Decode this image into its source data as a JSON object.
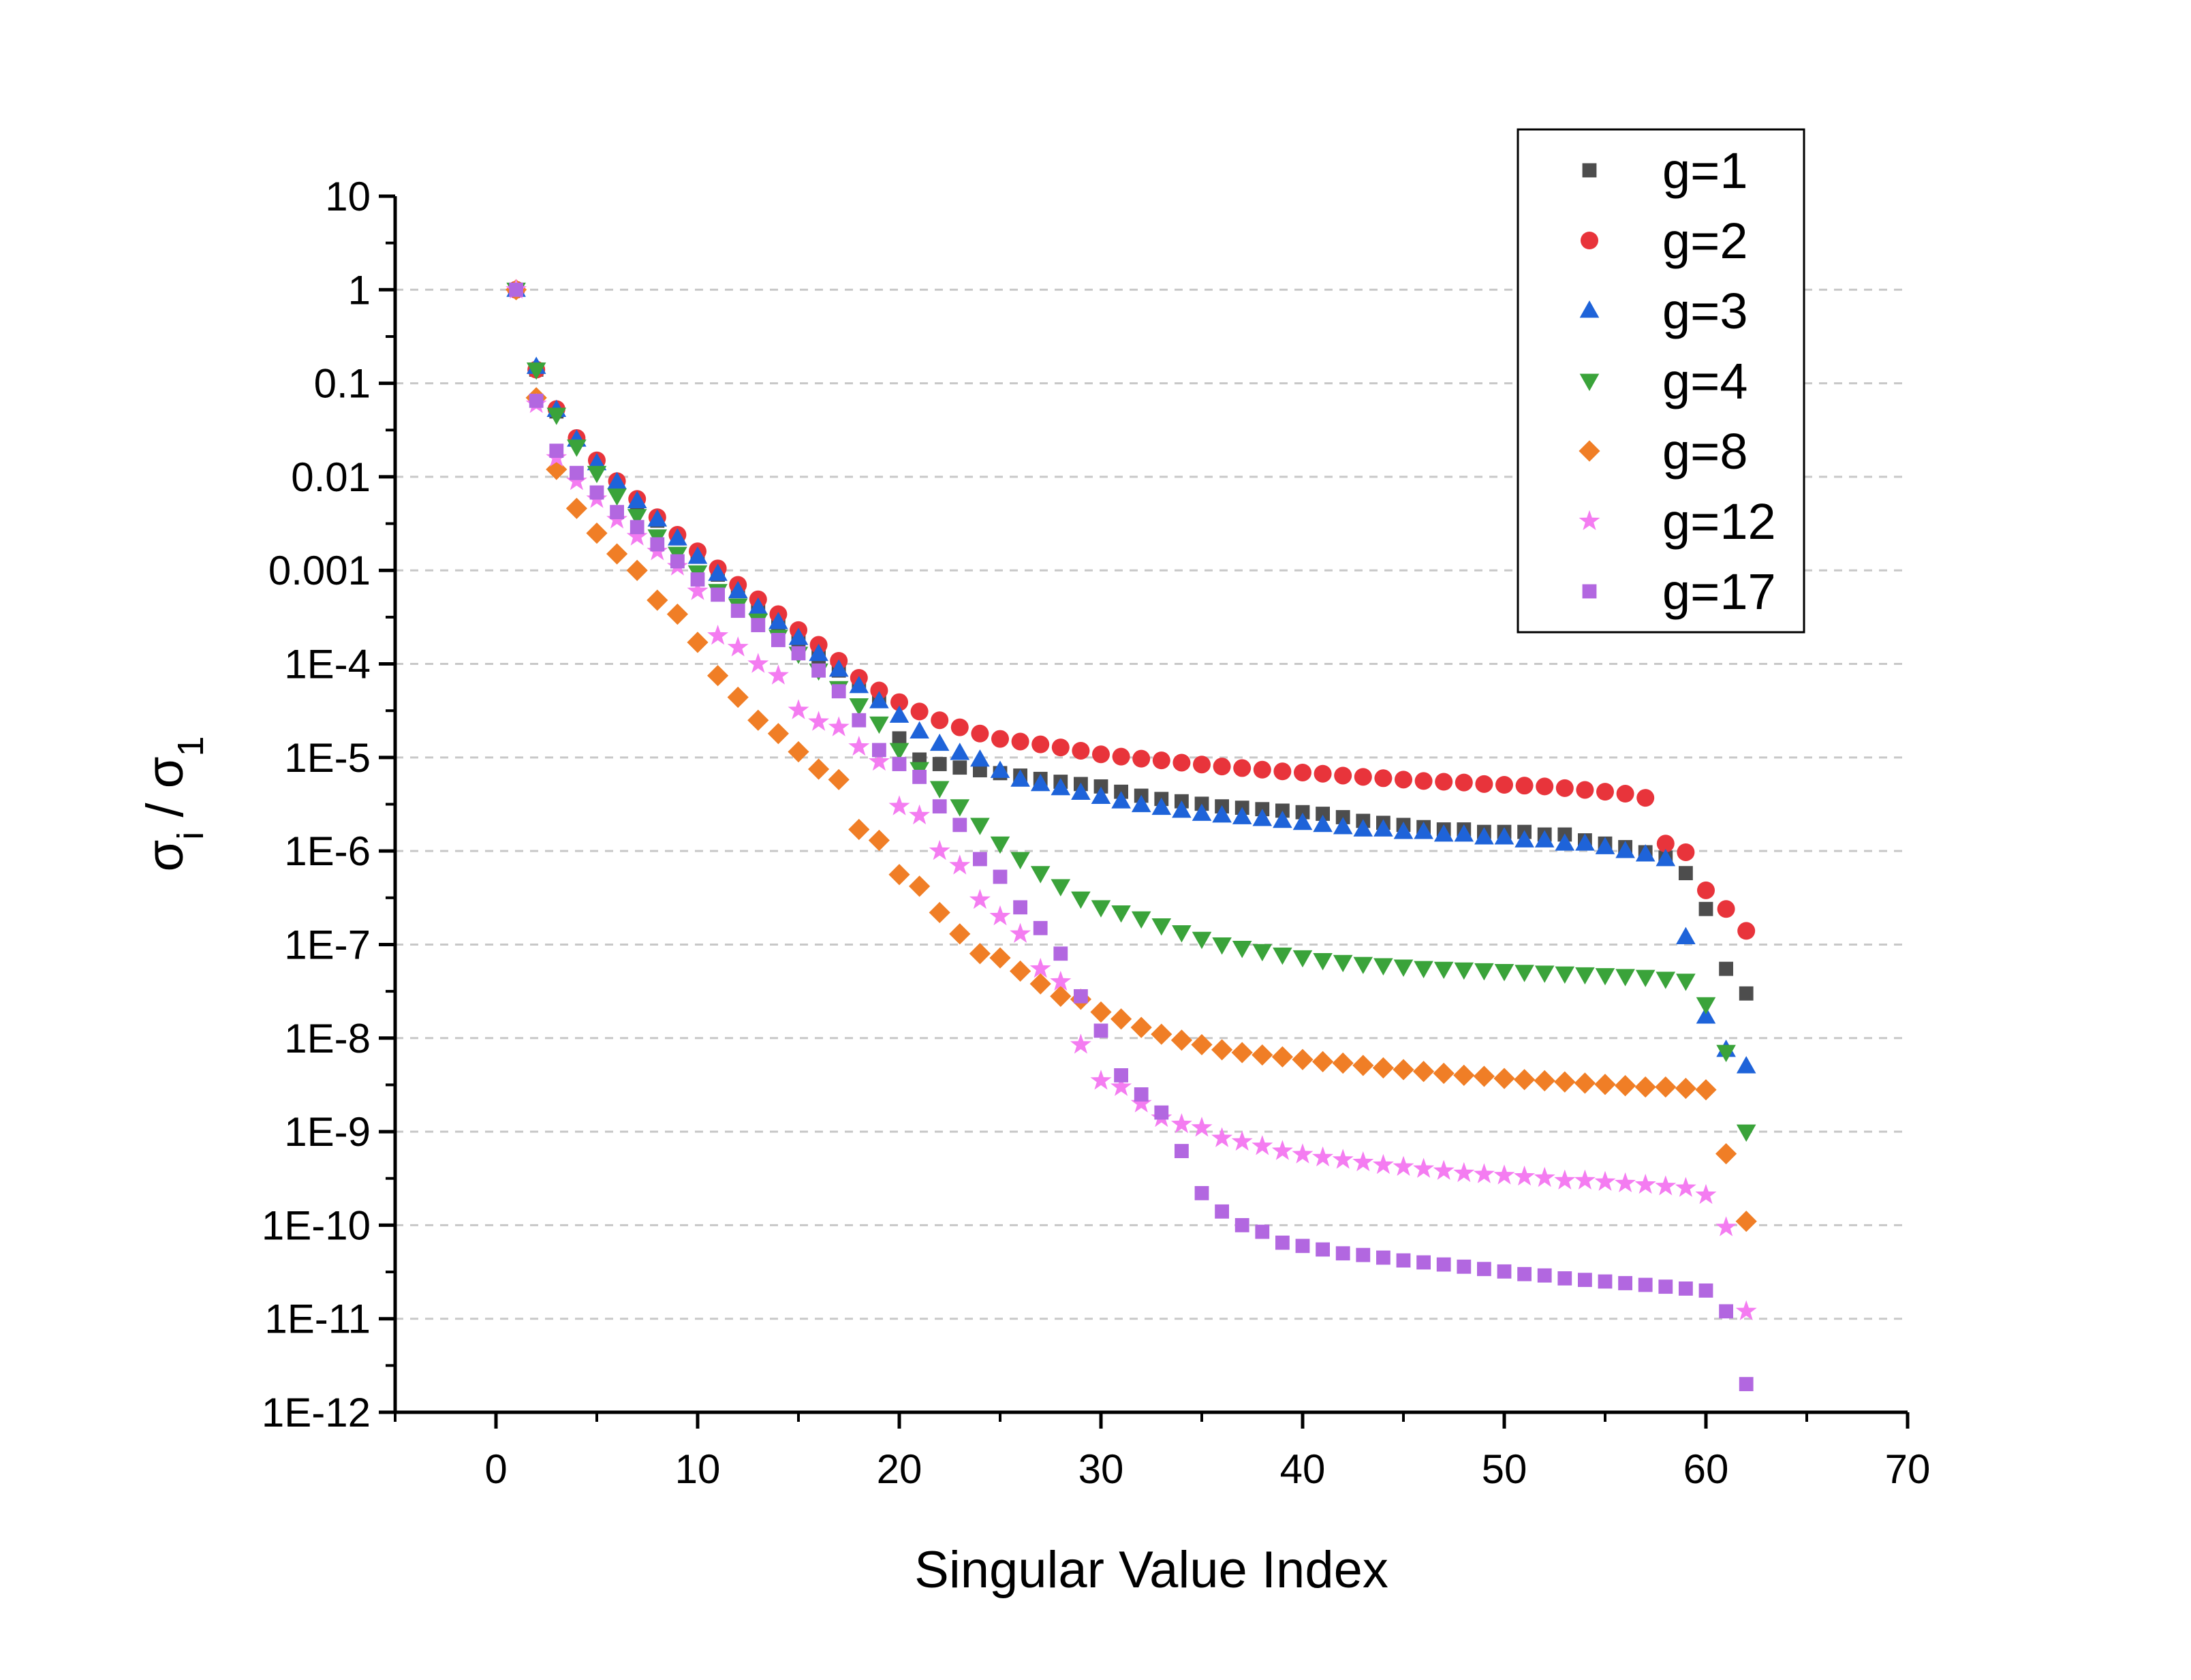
{
  "chart_data": {
    "type": "scatter",
    "title": "",
    "xlabel": "Singular Value Index",
    "ylabel": {
      "base": "σ",
      "sub_num": "i",
      "sep": " / ",
      "base2": "σ",
      "sub_den": "1"
    },
    "xlim": [
      -5,
      70
    ],
    "xticks": [
      0,
      10,
      20,
      30,
      40,
      50,
      60,
      70
    ],
    "xtick_labels": [
      "0",
      "10",
      "20",
      "30",
      "40",
      "50",
      "60",
      "70"
    ],
    "yscale": "log",
    "ylim": [
      1e-12,
      10
    ],
    "ytick_exponents": [
      1,
      0,
      -1,
      -2,
      -3,
      -4,
      -5,
      -6,
      -7,
      -8,
      -9,
      -10,
      -11,
      -12
    ],
    "ytick_labels": [
      "10",
      "1",
      "0.1",
      "0.01",
      "0.001",
      "1E-4",
      "1E-5",
      "1E-6",
      "1E-7",
      "1E-8",
      "1E-9",
      "1E-10",
      "1E-11",
      "1E-12"
    ],
    "grid": "horizontal dashed",
    "legend_position": "top-right",
    "series": [
      {
        "name": "g=1",
        "marker": "square",
        "color": "#4d4d4d",
        "x": [
          1,
          2,
          3,
          4,
          5,
          6,
          7,
          8,
          9,
          10,
          11,
          12,
          13,
          14,
          15,
          16,
          17,
          18,
          19,
          20,
          21,
          22,
          23,
          24,
          25,
          26,
          27,
          28,
          29,
          30,
          31,
          32,
          33,
          34,
          35,
          36,
          37,
          38,
          39,
          40,
          41,
          42,
          43,
          44,
          45,
          46,
          47,
          48,
          49,
          50,
          51,
          52,
          53,
          54,
          55,
          56,
          57,
          58,
          59,
          60,
          61,
          62
        ],
        "y": [
          1,
          0.14,
          0.05,
          0.025,
          0.014,
          0.0085,
          0.0052,
          0.0034,
          0.0022,
          0.0014,
          0.0009,
          0.0006,
          0.0004,
          0.00027,
          0.00018,
          0.00012,
          8.5e-05,
          6e-05,
          4.3e-05,
          1.6e-05,
          9.5e-06,
          8.5e-06,
          7.8e-06,
          7.3e-06,
          6.8e-06,
          6.4e-06,
          5.9e-06,
          5.5e-06,
          5.2e-06,
          4.9e-06,
          4.3e-06,
          3.9e-06,
          3.6e-06,
          3.4e-06,
          3.2e-06,
          3e-06,
          2.9e-06,
          2.8e-06,
          2.7e-06,
          2.6e-06,
          2.5e-06,
          2.3e-06,
          2.1e-06,
          2e-06,
          1.9e-06,
          1.8e-06,
          1.7e-06,
          1.7e-06,
          1.6e-06,
          1.6e-06,
          1.6e-06,
          1.5e-06,
          1.5e-06,
          1.3e-06,
          1.2e-06,
          1.1e-06,
          9.7e-07,
          8.5e-07,
          5.8e-07,
          2.4e-07,
          5.5e-08,
          3e-08
        ]
      },
      {
        "name": "g=2",
        "marker": "circle",
        "color": "#e8343b",
        "x": [
          1,
          2,
          3,
          4,
          5,
          6,
          7,
          8,
          9,
          10,
          11,
          12,
          13,
          14,
          15,
          16,
          17,
          18,
          19,
          20,
          21,
          22,
          23,
          24,
          25,
          26,
          27,
          28,
          29,
          30,
          31,
          32,
          33,
          34,
          35,
          36,
          37,
          38,
          39,
          40,
          41,
          42,
          43,
          44,
          45,
          46,
          47,
          48,
          49,
          50,
          51,
          52,
          53,
          54,
          55,
          56,
          57,
          58,
          59,
          60,
          61,
          62
        ],
        "y": [
          1,
          0.14,
          0.053,
          0.026,
          0.015,
          0.009,
          0.0058,
          0.0037,
          0.0024,
          0.0016,
          0.00105,
          0.0007,
          0.00049,
          0.00034,
          0.00023,
          0.00016,
          0.000108,
          7.1e-05,
          5.2e-05,
          3.9e-05,
          3.1e-05,
          2.5e-05,
          2.1e-05,
          1.8e-05,
          1.58e-05,
          1.48e-05,
          1.38e-05,
          1.28e-05,
          1.18e-05,
          1.08e-05,
          1.02e-05,
          9.7e-06,
          9.3e-06,
          8.8e-06,
          8.4e-06,
          8e-06,
          7.7e-06,
          7.4e-06,
          7.1e-06,
          6.9e-06,
          6.7e-06,
          6.4e-06,
          6.2e-06,
          6e-06,
          5.8e-06,
          5.6e-06,
          5.5e-06,
          5.4e-06,
          5.2e-06,
          5.1e-06,
          5e-06,
          4.9e-06,
          4.7e-06,
          4.5e-06,
          4.3e-06,
          4.1e-06,
          3.7e-06,
          1.2e-06,
          9.7e-07,
          3.8e-07,
          2.4e-07,
          1.4e-07
        ]
      },
      {
        "name": "g=3",
        "marker": "triangle-up",
        "color": "#1e63d9",
        "x": [
          1,
          2,
          3,
          4,
          5,
          6,
          7,
          8,
          9,
          10,
          11,
          12,
          13,
          14,
          15,
          16,
          17,
          18,
          19,
          20,
          21,
          22,
          23,
          24,
          25,
          26,
          27,
          28,
          29,
          30,
          31,
          32,
          33,
          34,
          35,
          36,
          37,
          38,
          39,
          40,
          41,
          42,
          43,
          44,
          45,
          46,
          47,
          48,
          49,
          50,
          51,
          52,
          53,
          54,
          55,
          56,
          57,
          58,
          59,
          60,
          61,
          62
        ],
        "y": [
          1,
          0.15,
          0.052,
          0.025,
          0.014,
          0.0088,
          0.0055,
          0.0035,
          0.0022,
          0.0014,
          0.00092,
          0.0006,
          0.0004,
          0.00028,
          0.00019,
          0.000128,
          8.7e-05,
          5.8e-05,
          4e-05,
          2.8e-05,
          1.9e-05,
          1.4e-05,
          1.12e-05,
          9.5e-06,
          7.2e-06,
          5.8e-06,
          5.2e-06,
          4.7e-06,
          4.2e-06,
          3.8e-06,
          3.4e-06,
          3.1e-06,
          2.9e-06,
          2.7e-06,
          2.5e-06,
          2.4e-06,
          2.3e-06,
          2.2e-06,
          2.1e-06,
          2e-06,
          1.9e-06,
          1.8e-06,
          1.7e-06,
          1.7e-06,
          1.6e-06,
          1.6e-06,
          1.5e-06,
          1.5e-06,
          1.4e-06,
          1.4e-06,
          1.3e-06,
          1.3e-06,
          1.2e-06,
          1.2e-06,
          1.1e-06,
          1e-06,
          9.2e-07,
          8.2e-07,
          1.2e-07,
          1.7e-08,
          7.5e-09,
          5e-09
        ]
      },
      {
        "name": "g=4",
        "marker": "triangle-down",
        "color": "#3aa33a",
        "x": [
          1,
          2,
          3,
          4,
          5,
          6,
          7,
          8,
          9,
          10,
          11,
          12,
          13,
          14,
          15,
          16,
          17,
          18,
          19,
          20,
          21,
          22,
          23,
          24,
          25,
          26,
          27,
          28,
          29,
          30,
          31,
          32,
          33,
          34,
          35,
          36,
          37,
          38,
          39,
          40,
          41,
          42,
          43,
          44,
          45,
          46,
          47,
          48,
          49,
          50,
          51,
          52,
          53,
          54,
          55,
          56,
          57,
          58,
          59,
          60,
          61,
          62
        ],
        "y": [
          1,
          0.14,
          0.046,
          0.021,
          0.011,
          0.0063,
          0.0038,
          0.0023,
          0.0015,
          0.00095,
          0.0006,
          0.00042,
          0.00029,
          0.000195,
          0.000128,
          8.5e-05,
          5.5e-05,
          3.6e-05,
          2.3e-05,
          1.2e-05,
          7.5e-06,
          4.7e-06,
          3e-06,
          1.9e-06,
          1.2e-06,
          8.2e-07,
          5.8e-07,
          4.2e-07,
          3.1e-07,
          2.5e-07,
          2.2e-07,
          1.9e-07,
          1.6e-07,
          1.35e-07,
          1.15e-07,
          1e-07,
          9.2e-08,
          8.5e-08,
          7.8e-08,
          7.3e-08,
          6.8e-08,
          6.5e-08,
          6.2e-08,
          6e-08,
          5.8e-08,
          5.6e-08,
          5.5e-08,
          5.4e-08,
          5.3e-08,
          5.2e-08,
          5.1e-08,
          5e-08,
          4.9e-08,
          4.8e-08,
          4.7e-08,
          4.6e-08,
          4.5e-08,
          4.3e-08,
          4.1e-08,
          2.3e-08,
          7.1e-09,
          1e-09
        ]
      },
      {
        "name": "g=8",
        "marker": "diamond",
        "color": "#f07e26",
        "x": [
          1,
          2,
          3,
          4,
          5,
          6,
          7,
          8,
          9,
          10,
          11,
          12,
          13,
          14,
          15,
          16,
          17,
          18,
          19,
          20,
          21,
          22,
          23,
          24,
          25,
          26,
          27,
          28,
          29,
          30,
          31,
          32,
          33,
          34,
          35,
          36,
          37,
          38,
          39,
          40,
          41,
          42,
          43,
          44,
          45,
          46,
          47,
          48,
          49,
          50,
          51,
          52,
          53,
          54,
          55,
          56,
          57,
          58,
          59,
          60,
          61,
          62
        ],
        "y": [
          1,
          0.07,
          0.012,
          0.0046,
          0.0025,
          0.0015,
          0.001,
          0.00048,
          0.00034,
          0.00017,
          7.5e-05,
          4.4e-05,
          2.5e-05,
          1.8e-05,
          1.15e-05,
          7.5e-06,
          5.8e-06,
          1.7e-06,
          1.3e-06,
          5.6e-07,
          4.2e-07,
          2.2e-07,
          1.3e-07,
          8e-08,
          7.2e-08,
          5.2e-08,
          3.8e-08,
          2.8e-08,
          2.6e-08,
          1.9e-08,
          1.6e-08,
          1.3e-08,
          1.1e-08,
          9.5e-09,
          8.5e-09,
          7.5e-09,
          7e-09,
          6.6e-09,
          6.3e-09,
          5.9e-09,
          5.6e-09,
          5.4e-09,
          5.1e-09,
          4.8e-09,
          4.6e-09,
          4.4e-09,
          4.2e-09,
          4e-09,
          3.9e-09,
          3.7e-09,
          3.6e-09,
          3.5e-09,
          3.4e-09,
          3.3e-09,
          3.2e-09,
          3.1e-09,
          3e-09,
          3e-09,
          2.9e-09,
          2.8e-09,
          5.8e-10,
          1.1e-10
        ]
      },
      {
        "name": "g=12",
        "marker": "star",
        "color": "#f47cf1",
        "x": [
          1,
          2,
          3,
          4,
          5,
          6,
          7,
          8,
          9,
          10,
          11,
          12,
          13,
          14,
          15,
          16,
          17,
          18,
          19,
          20,
          21,
          22,
          23,
          24,
          25,
          26,
          27,
          28,
          29,
          30,
          31,
          32,
          33,
          34,
          35,
          36,
          37,
          38,
          39,
          40,
          41,
          42,
          43,
          44,
          45,
          46,
          47,
          48,
          49,
          50,
          51,
          52,
          53,
          54,
          55,
          56,
          57,
          58,
          59,
          60,
          61,
          62
        ],
        "y": [
          1,
          0.06,
          0.016,
          0.009,
          0.0058,
          0.0035,
          0.0023,
          0.0016,
          0.0011,
          0.0006,
          0.0002,
          0.00015,
          0.0001,
          7.5e-05,
          3.2e-05,
          2.4e-05,
          2.1e-05,
          1.3e-05,
          9e-06,
          3e-06,
          2.4e-06,
          1e-06,
          7e-07,
          3e-07,
          2e-07,
          1.3e-07,
          5.5e-08,
          4e-08,
          8.5e-09,
          3.5e-09,
          3e-09,
          2e-09,
          1.4e-09,
          1.2e-09,
          1.1e-09,
          8.5e-10,
          7.8e-10,
          7e-10,
          6.2e-10,
          5.7e-10,
          5.3e-10,
          5e-10,
          4.7e-10,
          4.4e-10,
          4.2e-10,
          4e-10,
          3.8e-10,
          3.6e-10,
          3.5e-10,
          3.4e-10,
          3.3e-10,
          3.2e-10,
          3e-10,
          3e-10,
          2.9e-10,
          2.8e-10,
          2.7e-10,
          2.6e-10,
          2.5e-10,
          2.1e-10,
          9.5e-11,
          1.2e-11
        ]
      },
      {
        "name": "g=17",
        "marker": "square",
        "color": "#b267e0",
        "x": [
          1,
          2,
          3,
          4,
          5,
          6,
          7,
          8,
          9,
          10,
          11,
          12,
          13,
          14,
          15,
          16,
          17,
          18,
          19,
          20,
          21,
          22,
          23,
          24,
          25,
          26,
          27,
          28,
          29,
          30,
          31,
          32,
          33,
          34,
          35,
          36,
          37,
          38,
          39,
          40,
          41,
          42,
          43,
          44,
          45,
          46,
          47,
          48,
          49,
          50,
          51,
          52,
          53,
          54,
          55,
          56,
          57,
          58,
          59,
          60,
          61,
          62
        ],
        "y": [
          1,
          0.065,
          0.019,
          0.011,
          0.0068,
          0.0042,
          0.0029,
          0.0019,
          0.00125,
          0.0008,
          0.00055,
          0.00037,
          0.00026,
          0.00018,
          0.00013,
          8.5e-05,
          5.1e-05,
          2.5e-05,
          1.2e-05,
          8.5e-06,
          6.2e-06,
          3e-06,
          1.9e-06,
          8.2e-07,
          5.3e-07,
          2.5e-07,
          1.5e-07,
          8e-08,
          2.8e-08,
          1.2e-08,
          4e-09,
          2.5e-09,
          1.6e-09,
          6.2e-10,
          2.2e-10,
          1.4e-10,
          1e-10,
          8.5e-11,
          6.5e-11,
          6e-11,
          5.5e-11,
          5e-11,
          4.8e-11,
          4.5e-11,
          4.2e-11,
          4e-11,
          3.8e-11,
          3.6e-11,
          3.4e-11,
          3.2e-11,
          3e-11,
          2.9e-11,
          2.7e-11,
          2.6e-11,
          2.5e-11,
          2.4e-11,
          2.3e-11,
          2.2e-11,
          2.1e-11,
          2e-11,
          1.2e-11,
          2e-12
        ]
      }
    ]
  }
}
